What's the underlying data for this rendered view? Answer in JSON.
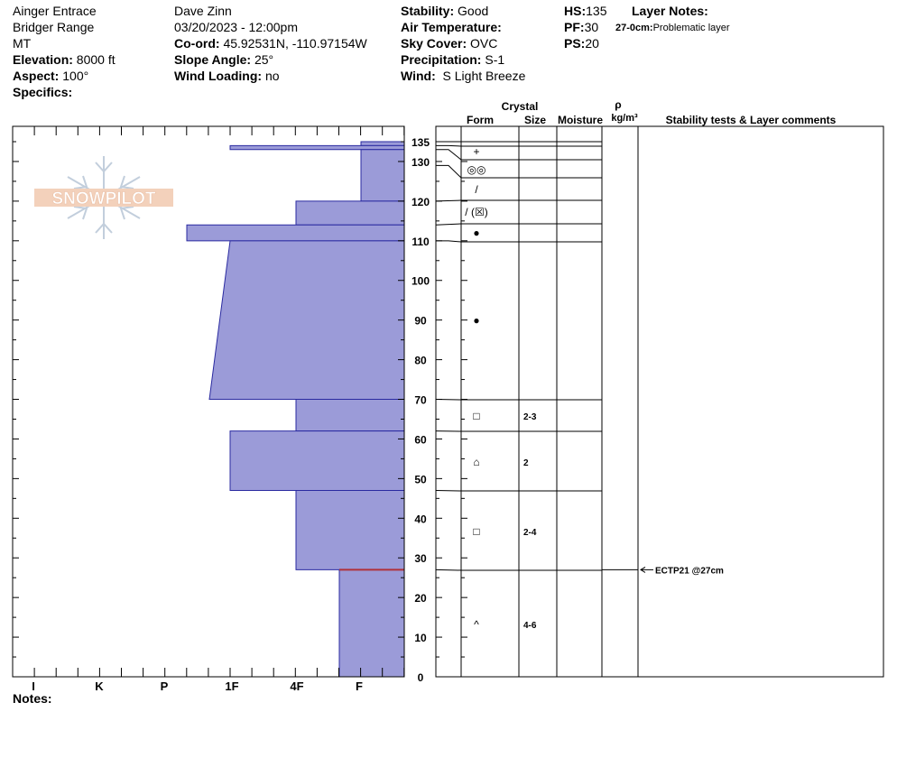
{
  "header": {
    "location": "Ainger Entrace",
    "range": "Bridger Range",
    "state": "MT",
    "elevation_label": "Elevation:",
    "elevation": "8000 ft",
    "aspect_label": "Aspect:",
    "aspect": "100°",
    "specifics_label": "Specifics:",
    "observer": "Dave Zinn",
    "datetime": "03/20/2023 - 12:00pm",
    "coord_label": "Co-ord:",
    "coord": "45.92531N, -110.97154W",
    "slope_label": "Slope Angle:",
    "slope": "25°",
    "wind_loading_label": "Wind Loading:",
    "wind_loading": "no",
    "stability_label": "Stability:",
    "stability": "Good",
    "air_temp_label": "Air Temperature:",
    "sky_label": "Sky Cover:",
    "sky": "OVC",
    "precip_label": "Precipitation:",
    "precip": "S-1",
    "wind_label": "Wind:",
    "wind": "S Light Breeze",
    "hs_label": "HS:",
    "hs": "135",
    "pf_label": "PF:",
    "pf": "30",
    "ps_label": "PS:",
    "ps": "20",
    "layer_notes_label": "Layer Notes:",
    "layer_note_depth": "27-0cm:",
    "layer_note_text": "Problematic layer",
    "notes_label": "Notes:"
  },
  "columns": {
    "crystal": "Crystal",
    "form": "Form",
    "size": "Size",
    "moisture": "Moisture",
    "rho": "ρ",
    "density_unit": "kg/m³",
    "stability": "Stability tests & Layer comments"
  },
  "logo_text": "SNOWPILOT",
  "chart_data": {
    "type": "bar",
    "description_free": true,
    "y_axis": {
      "min": 0,
      "max": 135,
      "ticks": [
        0,
        10,
        20,
        30,
        40,
        50,
        60,
        70,
        80,
        90,
        100,
        110,
        120,
        130,
        135
      ]
    },
    "x_axis": {
      "categories": [
        "I",
        "K",
        "P",
        "1F",
        "4F",
        "F"
      ]
    },
    "hardness_layers": [
      {
        "top": 135,
        "bottom": 134,
        "hardness_top": "F",
        "hardness_bottom": "F"
      },
      {
        "top": 134,
        "bottom": 133,
        "hardness_top": "1F",
        "hardness_bottom": "1F"
      },
      {
        "top": 133,
        "bottom": 120,
        "hardness_top": "F",
        "hardness_bottom": "F"
      },
      {
        "top": 120,
        "bottom": 114,
        "hardness_top": "4F",
        "hardness_bottom": "4F"
      },
      {
        "top": 114,
        "bottom": 110,
        "hardness_top": "P+",
        "hardness_bottom": "P+"
      },
      {
        "top": 110,
        "bottom": 70,
        "hardness_top": "1F",
        "hardness_bottom": "P-"
      },
      {
        "top": 70,
        "bottom": 62,
        "hardness_top": "4F",
        "hardness_bottom": "4F"
      },
      {
        "top": 62,
        "bottom": 47,
        "hardness_top": "1F",
        "hardness_bottom": "1F"
      },
      {
        "top": 47,
        "bottom": 27,
        "hardness_top": "4F",
        "hardness_bottom": "4F"
      },
      {
        "top": 27,
        "bottom": 0,
        "hardness_top": "F+",
        "hardness_bottom": "F+"
      }
    ],
    "hardness_scale": {
      "I": 6,
      "K": 5,
      "P": 4,
      "1F": 3,
      "4F": 2,
      "F": 1
    },
    "layer_boundaries": [
      135,
      134,
      133,
      129,
      125,
      120,
      114,
      110,
      70,
      62,
      47,
      27,
      0
    ],
    "crystal_rows": [
      {
        "top": 134,
        "bottom": 133,
        "form": "+",
        "size": ""
      },
      {
        "top": 133,
        "bottom": 129,
        "form": "◎◎",
        "size": ""
      },
      {
        "top": 129,
        "bottom": 125,
        "form": "/",
        "size": ""
      },
      {
        "top": 125,
        "bottom": 114,
        "form": "/ (☒)",
        "size": ""
      },
      {
        "top": 114,
        "bottom": 110,
        "form": "●",
        "size": ""
      },
      {
        "top": 110,
        "bottom": 70,
        "form": "●",
        "size": ""
      },
      {
        "top": 70,
        "bottom": 62,
        "form": "□",
        "size": "2-3"
      },
      {
        "top": 62,
        "bottom": 47,
        "form": "⌂",
        "size": "2"
      },
      {
        "top": 47,
        "bottom": 27,
        "form": "□",
        "size": "2-4"
      },
      {
        "top": 27,
        "bottom": 0,
        "form": "^",
        "size": "4-6"
      }
    ],
    "stability_tests": [
      {
        "depth": 27,
        "label": "ECTP21 @27cm"
      }
    ],
    "problem_layer_depth": 27
  }
}
